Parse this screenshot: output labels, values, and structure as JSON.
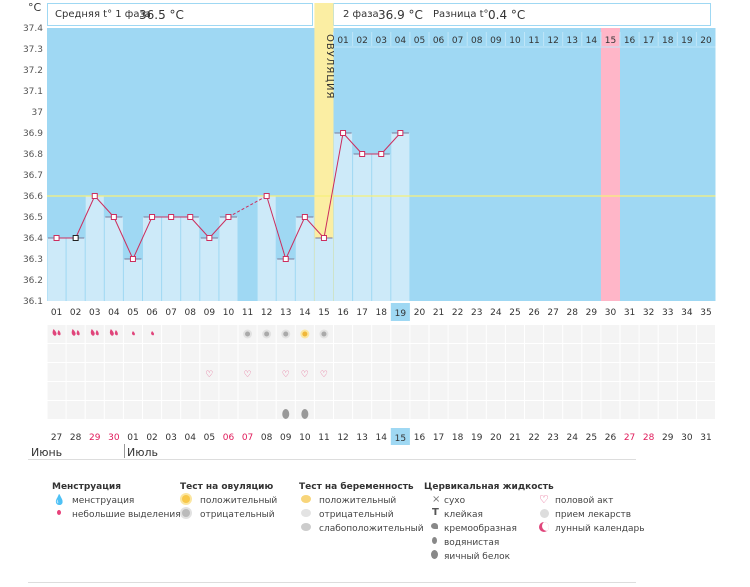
{
  "header": {
    "unit": "°C",
    "phase1_label": "Средняя t° 1 фаза",
    "phase1_value": "36.5 °C",
    "phase2_label": "2 фаза",
    "phase2_value": "36.9 °C",
    "diff_label": "Разница t°",
    "diff_value": "0.4 °C"
  },
  "ovulation_label": "ОВУЛЯЦИЯ",
  "colors": {
    "sky": "#9fd8f3",
    "bar": "#cdeaf9",
    "ovulation": "#fbeea3",
    "highlight": "#ffb6c8",
    "line": "#cc2e5e",
    "weekend": "#e01a5a",
    "today": "#9fd8f3",
    "grid_cell": "#f2f2f2"
  },
  "chart_data": {
    "type": "line",
    "ylabel": "°C",
    "ylim": [
      36.1,
      37.4
    ],
    "yticks": [
      "37.4",
      "37.3",
      "37.2",
      "37.1",
      "37",
      "36.9",
      "36.8",
      "36.7",
      "36.6",
      "36.5",
      "36.4",
      "36.3",
      "36.2",
      "36.1"
    ],
    "coverline": 36.6,
    "cycle_days": [
      "01",
      "02",
      "03",
      "04",
      "05",
      "06",
      "07",
      "08",
      "09",
      "10",
      "11",
      "12",
      "13",
      "14",
      "15",
      "16",
      "17",
      "18",
      "19",
      "20",
      "21",
      "22",
      "23",
      "24",
      "25",
      "26",
      "27",
      "28",
      "29",
      "30",
      "31",
      "32",
      "33",
      "34",
      "35"
    ],
    "phase2_days": [
      "01",
      "02",
      "03",
      "04",
      "05",
      "06",
      "07",
      "08",
      "09",
      "10",
      "11",
      "12",
      "13",
      "14",
      "15",
      "16",
      "17",
      "18",
      "19",
      "20"
    ],
    "calendar_dates": [
      "27",
      "28",
      "29",
      "30",
      "01",
      "02",
      "03",
      "04",
      "05",
      "06",
      "07",
      "08",
      "09",
      "10",
      "11",
      "12",
      "13",
      "14",
      "15",
      "16",
      "17",
      "18",
      "19",
      "20",
      "21",
      "22",
      "23",
      "24",
      "25",
      "26",
      "27",
      "28",
      "29",
      "30",
      "31"
    ],
    "calendar_weekend": [
      false,
      false,
      true,
      true,
      false,
      false,
      false,
      false,
      false,
      true,
      true,
      false,
      false,
      false,
      false,
      false,
      false,
      false,
      false,
      false,
      false,
      false,
      false,
      false,
      false,
      false,
      false,
      false,
      false,
      false,
      true,
      true,
      false,
      false,
      false
    ],
    "months": [
      "Июнь",
      "Июль"
    ],
    "ovulation_day": 15,
    "today_day": 19,
    "highlight_day": 30,
    "series": [
      {
        "values": [
          36.4,
          36.4,
          36.6,
          36.5,
          36.3,
          36.5,
          36.5,
          36.5,
          36.4,
          36.5,
          null,
          36.6,
          36.3,
          36.5,
          36.4,
          36.9,
          36.8,
          36.8,
          36.9,
          null,
          null,
          null,
          null,
          null,
          null,
          null,
          null,
          null,
          null,
          null,
          null,
          null,
          null,
          null,
          null
        ]
      }
    ]
  },
  "markers": {
    "menstruation": [
      [
        "big"
      ],
      [
        "big"
      ],
      [
        "big"
      ],
      [
        "big"
      ],
      [
        "small"
      ],
      [
        "small"
      ]
    ],
    "ovulation_test": {
      "11": "neg",
      "12": "neg",
      "13": "neg",
      "14": "pos",
      "15": "neg"
    },
    "intercourse_days": [
      9,
      11,
      13,
      14,
      15
    ],
    "egg_white_days": [
      13,
      14
    ]
  },
  "legend": {
    "menstruation": {
      "title": "Менструация",
      "items": [
        "менструация",
        "небольшие выделения"
      ]
    },
    "ovulation_test": {
      "title": "Тест на овуляцию",
      "items": [
        "положительный",
        "отрицательный"
      ]
    },
    "pregnancy_test": {
      "title": "Тест на беременность",
      "items": [
        "положительный",
        "отрицательный",
        "слабоположительный"
      ]
    },
    "cervical": {
      "title": "Цервикальная жидкость",
      "items": [
        "сухо",
        "клейкая",
        "кремообразная",
        "водянистая",
        "яичный белок"
      ]
    },
    "other": {
      "items": [
        "половой акт",
        "прием лекарств",
        "лунный календарь"
      ]
    }
  }
}
